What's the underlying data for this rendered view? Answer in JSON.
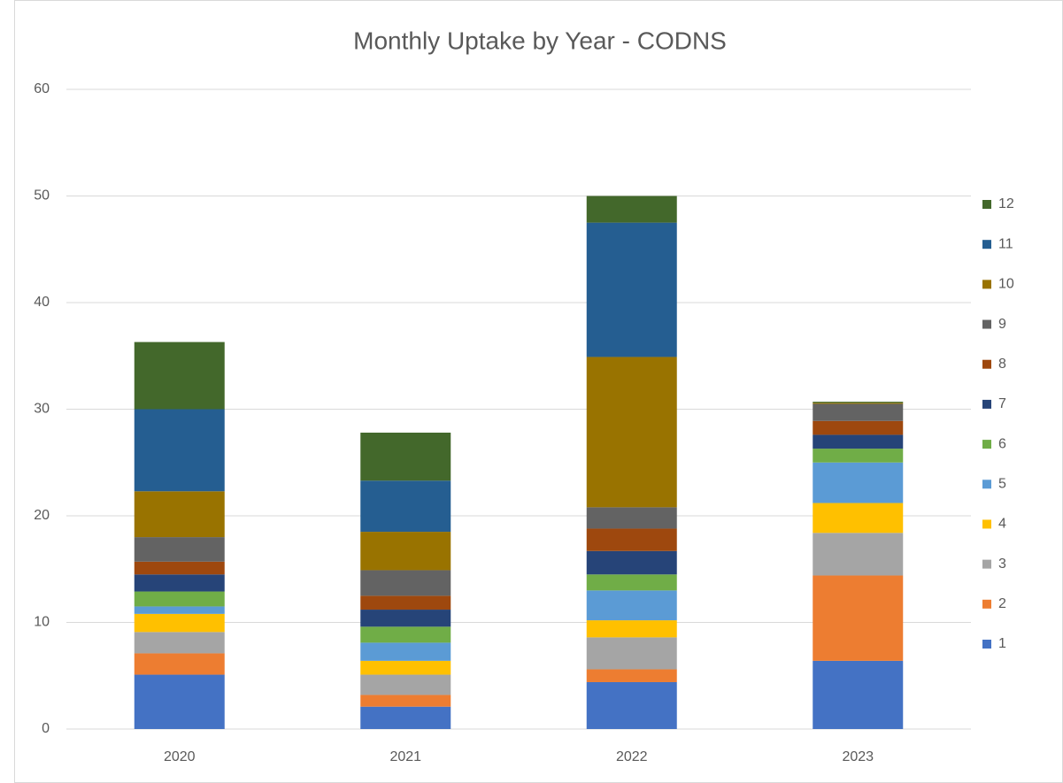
{
  "chart_data": {
    "type": "stacked_bar",
    "title": "Monthly Uptake by Year - CODNS",
    "categories": [
      "2020",
      "2021",
      "2022",
      "2023"
    ],
    "series": [
      {
        "name": "1",
        "color": "#4472c4",
        "values": [
          5.1,
          2.1,
          4.4,
          6.4
        ]
      },
      {
        "name": "2",
        "color": "#ed7d31",
        "values": [
          2.0,
          1.1,
          1.2,
          8.0
        ]
      },
      {
        "name": "3",
        "color": "#a5a5a5",
        "values": [
          2.0,
          1.9,
          3.0,
          4.0
        ]
      },
      {
        "name": "4",
        "color": "#ffc000",
        "values": [
          1.7,
          1.3,
          1.6,
          2.8
        ]
      },
      {
        "name": "5",
        "color": "#5b9bd5",
        "values": [
          0.7,
          1.7,
          2.8,
          3.8
        ]
      },
      {
        "name": "6",
        "color": "#70ad47",
        "values": [
          1.4,
          1.5,
          1.5,
          1.3
        ]
      },
      {
        "name": "7",
        "color": "#264478",
        "values": [
          1.6,
          1.6,
          2.2,
          1.3
        ]
      },
      {
        "name": "8",
        "color": "#9e480e",
        "values": [
          1.2,
          1.3,
          2.1,
          1.3
        ]
      },
      {
        "name": "9",
        "color": "#636363",
        "values": [
          2.3,
          2.4,
          2.0,
          1.6
        ]
      },
      {
        "name": "10",
        "color": "#997300",
        "values": [
          4.3,
          3.6,
          14.1,
          0.1
        ]
      },
      {
        "name": "11",
        "color": "#255e91",
        "values": [
          7.7,
          4.8,
          12.6,
          0
        ]
      },
      {
        "name": "12",
        "color": "#43682b",
        "values": [
          6.3,
          4.5,
          2.5,
          0.1
        ]
      }
    ],
    "ylim": [
      0,
      60
    ],
    "yticks": [
      0,
      10,
      20,
      30,
      40,
      50,
      60
    ],
    "grid": true,
    "legend": "right"
  }
}
